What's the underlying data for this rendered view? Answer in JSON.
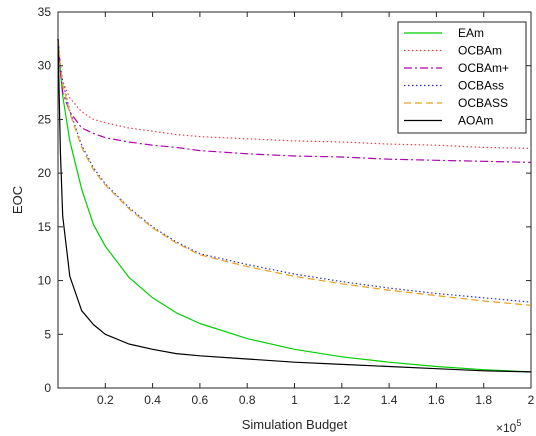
{
  "chart_data": {
    "type": "line",
    "xlabel": "Simulation Budget",
    "ylabel": "EOC",
    "x_exponent_label": "×10",
    "x_exponent_power": "5",
    "xlim": [
      0,
      200000
    ],
    "ylim": [
      0,
      35
    ],
    "x_ticks": [
      20000,
      40000,
      60000,
      80000,
      100000,
      120000,
      140000,
      160000,
      180000,
      200000
    ],
    "x_tick_labels": [
      "0.2",
      "0.4",
      "0.6",
      "0.8",
      "1",
      "1.2",
      "1.4",
      "1.6",
      "1.8",
      "2"
    ],
    "y_ticks": [
      0,
      5,
      10,
      15,
      20,
      25,
      30,
      35
    ],
    "y_tick_labels": [
      "0",
      "5",
      "10",
      "15",
      "20",
      "25",
      "30",
      "35"
    ],
    "grid": false,
    "legend_position": "top-right",
    "x": [
      0,
      1000,
      2000,
      5000,
      10000,
      15000,
      20000,
      30000,
      40000,
      50000,
      60000,
      80000,
      100000,
      120000,
      140000,
      160000,
      180000,
      200000
    ],
    "series": [
      {
        "name": "EAm",
        "color": "#00d000",
        "dash": "solid",
        "values": [
          32.5,
          29.5,
          27.2,
          23.0,
          18.5,
          15.2,
          13.2,
          10.3,
          8.4,
          7.0,
          6.0,
          4.6,
          3.6,
          2.9,
          2.4,
          2.0,
          1.7,
          1.5
        ]
      },
      {
        "name": "OCBAm",
        "color": "#e8404a",
        "dash": "dotted",
        "values": [
          32.5,
          30.0,
          28.5,
          27.0,
          25.7,
          25.0,
          24.7,
          24.2,
          23.9,
          23.6,
          23.4,
          23.2,
          23.0,
          22.9,
          22.7,
          22.6,
          22.4,
          22.3
        ]
      },
      {
        "name": "OCBAm+",
        "color": "#b000b0",
        "dash": "dashdot",
        "values": [
          32.5,
          29.5,
          27.5,
          25.7,
          24.2,
          23.7,
          23.3,
          22.9,
          22.6,
          22.4,
          22.1,
          21.8,
          21.6,
          21.5,
          21.3,
          21.2,
          21.1,
          21.0
        ]
      },
      {
        "name": "OCBAss",
        "color": "#3030c0",
        "dash": "dotted",
        "values": [
          32.5,
          30.0,
          28.5,
          25.8,
          22.6,
          20.5,
          19.0,
          16.8,
          15.0,
          13.6,
          12.5,
          11.5,
          10.6,
          9.9,
          9.3,
          8.8,
          8.4,
          8.0
        ]
      },
      {
        "name": "OCBASS",
        "color": "#e8a020",
        "dash": "dashed",
        "values": [
          32.5,
          30.0,
          28.3,
          25.6,
          22.4,
          20.3,
          18.9,
          16.7,
          14.9,
          13.5,
          12.4,
          11.3,
          10.4,
          9.7,
          9.1,
          8.6,
          8.1,
          7.7
        ]
      },
      {
        "name": "AOAm",
        "color": "#000000",
        "dash": "solid",
        "values": [
          32.5,
          22.0,
          16.0,
          10.4,
          7.2,
          5.9,
          5.0,
          4.1,
          3.6,
          3.2,
          3.0,
          2.7,
          2.4,
          2.2,
          2.0,
          1.8,
          1.6,
          1.5
        ]
      }
    ]
  }
}
